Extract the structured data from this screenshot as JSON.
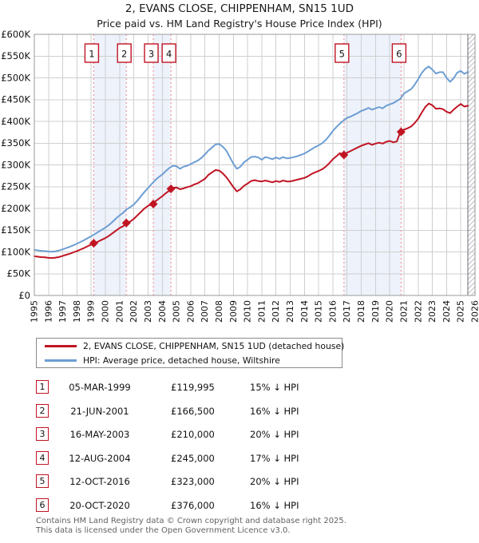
{
  "colors": {
    "property": "#c01423",
    "hpi": "#6d9ed3",
    "dashed": "#f2858d",
    "band": "#edf2fb",
    "grid": "#cfcfcf",
    "border": "#9a9a9a",
    "hatch": "#b9bec6",
    "hatch_edge": "#6e6e6e",
    "text": "#111111"
  },
  "footer": {
    "line1": "Contains HM Land Registry data © Crown copyright and database right 2025.",
    "line2": "This data is licensed under the Open Government Licence v3.0."
  },
  "chart_data": {
    "type": "line",
    "title": "2, EVANS CLOSE, CHIPPENHAM, SN15 1UD",
    "subtitle": "Price paid vs. HM Land Registry's House Price Index (HPI)",
    "xlim": [
      1995,
      2026
    ],
    "ylim_k": [
      0,
      600
    ],
    "grid": true,
    "legend_position": "bottom",
    "x_ticks": [
      "1995",
      "1996",
      "1997",
      "1998",
      "1999",
      "2000",
      "2001",
      "2002",
      "2003",
      "2004",
      "2005",
      "2006",
      "2007",
      "2008",
      "2009",
      "2010",
      "2011",
      "2012",
      "2013",
      "2014",
      "2015",
      "2016",
      "2017",
      "2018",
      "2019",
      "2020",
      "2021",
      "2022",
      "2023",
      "2024",
      "2025",
      "2026"
    ],
    "y_ticks": [
      {
        "value_k": 0,
        "label": "£0"
      },
      {
        "value_k": 50,
        "label": "£50K"
      },
      {
        "value_k": 100,
        "label": "£100K"
      },
      {
        "value_k": 150,
        "label": "£150K"
      },
      {
        "value_k": 200,
        "label": "£200K"
      },
      {
        "value_k": 250,
        "label": "£250K"
      },
      {
        "value_k": 300,
        "label": "£300K"
      },
      {
        "value_k": 350,
        "label": "£350K"
      },
      {
        "value_k": 400,
        "label": "£400K"
      },
      {
        "value_k": 450,
        "label": "£450K"
      },
      {
        "value_k": 500,
        "label": "£500K"
      },
      {
        "value_k": 550,
        "label": "£550K"
      },
      {
        "value_k": 600,
        "label": "£600K"
      }
    ],
    "x_start": 1995.0,
    "x_step": 0.25,
    "series": [
      {
        "key": "property",
        "name": "2, EVANS CLOSE, CHIPPENHAM, SN15 1UD (detached house)",
        "values": [
          90,
          89,
          88,
          87.5,
          86.5,
          86,
          87,
          88.5,
          91,
          93.5,
          96,
          99,
          102,
          105.5,
          109,
          113,
          117,
          120,
          124,
          128,
          132,
          137,
          143,
          149,
          155,
          159,
          166.5,
          170,
          176,
          184,
          192,
          200,
          206,
          209,
          216,
          222,
          228,
          235,
          241,
          247,
          248,
          244,
          246,
          249,
          251,
          255,
          258,
          263,
          268,
          277,
          283,
          288,
          287,
          281,
          272,
          261,
          249,
          239,
          244,
          252,
          257,
          263,
          265,
          263,
          262,
          264,
          262,
          260,
          263,
          261,
          264,
          262,
          262,
          264,
          266,
          268,
          270,
          274,
          279,
          283,
          286,
          290,
          296,
          304,
          313,
          320,
          327,
          323,
          328,
          332,
          336,
          340,
          344,
          347,
          350,
          346,
          349,
          351,
          349,
          353,
          355,
          352,
          354,
          376,
          381,
          384,
          388,
          396,
          406,
          420,
          433,
          441,
          437,
          429,
          430,
          428,
          422,
          419,
          427,
          434,
          440,
          434,
          436
        ]
      },
      {
        "key": "hpi",
        "name": "HPI: Average price, detached house, Wiltshire",
        "values": [
          105,
          103.5,
          102.5,
          102,
          101,
          100.5,
          101.5,
          103.5,
          106,
          109,
          112,
          115.5,
          119,
          123,
          127,
          131.5,
          136,
          141,
          146,
          151,
          156,
          162,
          169,
          177,
          184,
          190,
          198,
          203,
          209,
          218,
          228,
          238,
          247,
          256,
          265,
          272,
          278,
          286,
          293,
          298,
          297,
          291,
          296,
          298,
          302,
          306,
          310,
          316,
          324,
          333,
          340,
          347,
          348,
          342,
          333,
          318,
          303,
          291,
          296,
          306,
          312,
          318,
          319,
          317,
          312,
          318,
          316,
          313,
          317,
          314,
          318,
          315,
          316,
          318,
          320,
          323,
          326,
          331,
          336,
          341,
          345,
          350,
          357,
          367,
          378,
          387,
          395,
          402,
          408,
          411,
          415,
          419,
          424,
          427,
          431,
          427,
          430,
          433,
          430,
          436,
          439,
          442,
          447,
          452,
          464,
          469,
          474,
          484,
          497,
          511,
          521,
          526,
          519,
          510,
          513,
          513,
          500,
          491,
          499,
          512,
          516,
          509,
          514
        ]
      }
    ],
    "sales": [
      {
        "num": "1",
        "x": 1999.18,
        "price_k": 119.995,
        "date": "05-MAR-1999",
        "price": "£119,995",
        "vs_hpi": "15% ↓ HPI"
      },
      {
        "num": "2",
        "x": 2001.47,
        "price_k": 166.5,
        "date": "21-JUN-2001",
        "price": "£166,500",
        "vs_hpi": "16% ↓ HPI"
      },
      {
        "num": "3",
        "x": 2003.37,
        "price_k": 210,
        "date": "16-MAY-2003",
        "price": "£210,000",
        "vs_hpi": "20% ↓ HPI"
      },
      {
        "num": "4",
        "x": 2004.61,
        "price_k": 245,
        "date": "12-AUG-2004",
        "price": "£245,000",
        "vs_hpi": "17% ↓ HPI"
      },
      {
        "num": "5",
        "x": 2016.78,
        "price_k": 323,
        "date": "12-OCT-2016",
        "price": "£323,000",
        "vs_hpi": "20% ↓ HPI"
      },
      {
        "num": "6",
        "x": 2020.8,
        "price_k": 376,
        "date": "20-OCT-2020",
        "price": "£376,000",
        "vs_hpi": "16% ↓ HPI"
      }
    ],
    "ownership_bands": [
      [
        1999.18,
        2001.47
      ],
      [
        2003.37,
        2004.61
      ],
      [
        2016.78,
        2020.8
      ]
    ],
    "data_end_x": 2025.5
  }
}
